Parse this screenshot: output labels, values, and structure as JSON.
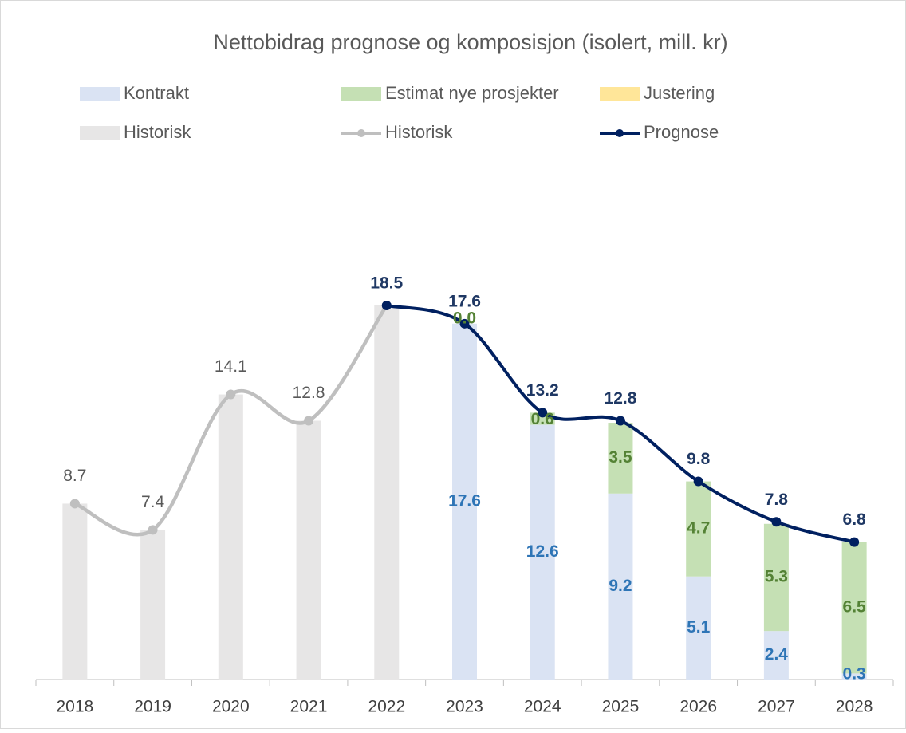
{
  "chart_data": {
    "type": "bar",
    "title": "Nettobidrag prognose og komposisjon (isolert, mill. kr)",
    "categories": [
      "2018",
      "2019",
      "2020",
      "2021",
      "2022",
      "2023",
      "2024",
      "2025",
      "2026",
      "2027",
      "2028"
    ],
    "ylim": [
      0,
      25
    ],
    "series": [
      {
        "name": "Kontrakt",
        "type": "bar",
        "color": "#dae3f3",
        "label_color": "#2e75b6",
        "values": [
          null,
          null,
          null,
          null,
          null,
          17.6,
          12.6,
          9.2,
          5.1,
          2.4,
          0.3
        ]
      },
      {
        "name": "Estimat nye prosjekter",
        "type": "bar",
        "color": "#c5e0b4",
        "label_color": "#548235",
        "values": [
          null,
          null,
          null,
          null,
          null,
          0,
          0.6,
          3.5,
          4.7,
          5.3,
          6.5
        ],
        "value_labels": [
          null,
          null,
          null,
          null,
          null,
          "0.0",
          "0.6",
          "3.5",
          "4.7",
          "5.3",
          "6.5"
        ]
      },
      {
        "name": "Justering",
        "type": "bar",
        "color": "#ffe699",
        "values": [
          null,
          null,
          null,
          null,
          null,
          null,
          null,
          null,
          null,
          null,
          null
        ]
      },
      {
        "name": "Historisk",
        "type": "bar",
        "color": "#e7e6e6",
        "values": [
          8.7,
          7.4,
          14.1,
          12.8,
          18.5,
          null,
          null,
          null,
          null,
          null,
          null
        ]
      },
      {
        "name": "Historisk",
        "type": "line",
        "color": "#bfbfbf",
        "label_color": "#595959",
        "values": [
          8.7,
          7.4,
          14.1,
          12.8,
          18.5,
          null,
          null,
          null,
          null,
          null,
          null
        ]
      },
      {
        "name": "Prognose",
        "type": "line",
        "color": "#002060",
        "label_color": "#1f3864",
        "values": [
          null,
          null,
          null,
          null,
          18.5,
          17.6,
          13.2,
          12.8,
          9.8,
          7.8,
          6.8
        ]
      }
    ]
  }
}
